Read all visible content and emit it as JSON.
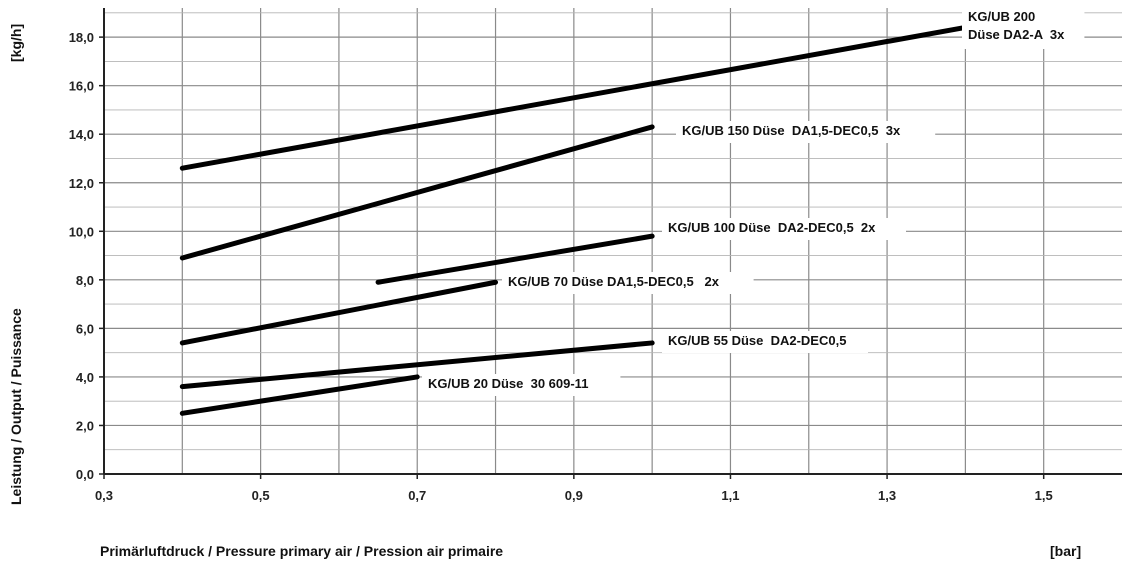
{
  "chart_data": {
    "type": "line",
    "title": "",
    "ylabel": "Leistung / Output / Puissance",
    "yunit": "[kg/h]",
    "xlabel": "Primärluftdruck / Pressure primary air / Pression air primaire",
    "xunit": "[bar]",
    "xlim": [
      0.3,
      1.6
    ],
    "ylim": [
      0,
      19.2
    ],
    "grid": true,
    "x_ticks": [
      "0,3",
      "0,5",
      "0,7",
      "0,9",
      "1,1",
      "1,3",
      "1,5"
    ],
    "y_ticks": [
      "0,0",
      "2,0",
      "4,0",
      "6,0",
      "8,0",
      "10,0",
      "12,0",
      "14,0",
      "16,0",
      "18,0"
    ],
    "series": [
      {
        "label_lines": [
          "KG/UB 200",
          "Düse DA2-A  3x"
        ],
        "x": [
          0.4,
          1.4
        ],
        "y": [
          12.6,
          18.4
        ]
      },
      {
        "label_lines": [
          "KG/UB 150 Düse  DA1,5-DEC0,5  3x"
        ],
        "x": [
          0.4,
          1.0
        ],
        "y": [
          8.9,
          14.3
        ]
      },
      {
        "label_lines": [
          "KG/UB 100 Düse  DA2-DEC0,5  2x"
        ],
        "x": [
          0.65,
          1.0
        ],
        "y": [
          7.9,
          9.8
        ]
      },
      {
        "label_lines": [
          "KG/UB 70 Düse DA1,5-DEC0,5   2x"
        ],
        "x": [
          0.4,
          0.8
        ],
        "y": [
          5.4,
          7.9
        ]
      },
      {
        "label_lines": [
          "KG/UB 55 Düse  DA2-DEC0,5"
        ],
        "x": [
          0.4,
          1.0
        ],
        "y": [
          3.6,
          5.4
        ]
      },
      {
        "label_lines": [
          "KG/UB 20 Düse  30 609-11"
        ],
        "x": [
          0.4,
          0.7
        ],
        "y": [
          2.5,
          4.0
        ]
      }
    ]
  }
}
